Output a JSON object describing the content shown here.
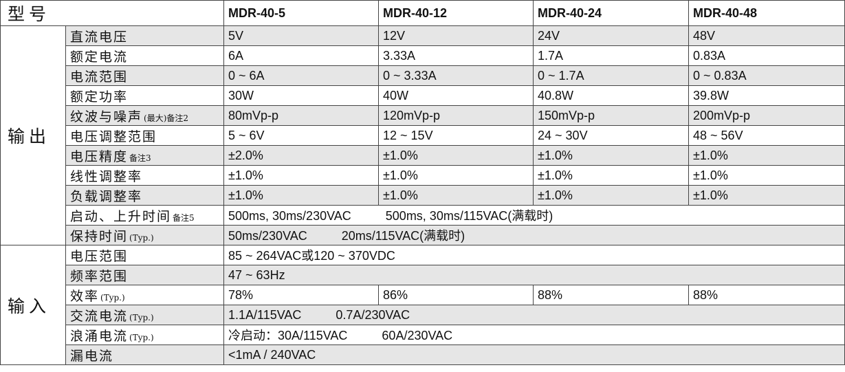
{
  "header": {
    "title": "型号",
    "models": [
      "MDR-40-5",
      "MDR-40-12",
      "MDR-40-24",
      "MDR-40-48"
    ]
  },
  "groups": [
    {
      "name": "输出",
      "rows": [
        {
          "label": "直流电压",
          "cells": [
            "5V",
            "12V",
            "24V",
            "48V"
          ]
        },
        {
          "label": "额定电流",
          "cells": [
            "6A",
            "3.33A",
            "1.7A",
            "0.83A"
          ]
        },
        {
          "label": "电流范围",
          "cells": [
            "0 ~ 6A",
            "0 ~ 3.33A",
            "0 ~ 1.7A",
            "0 ~ 0.83A"
          ]
        },
        {
          "label": "额定功率",
          "cells": [
            "30W",
            "40W",
            "40.8W",
            "39.8W"
          ]
        },
        {
          "label": "纹波与噪声",
          "note": "(最大)备注2",
          "cells": [
            "80mVp-p",
            "120mVp-p",
            "150mVp-p",
            "200mVp-p"
          ]
        },
        {
          "label": "电压调整范围",
          "cells": [
            "5 ~ 6V",
            "12 ~ 15V",
            "24 ~ 30V",
            "48 ~ 56V"
          ]
        },
        {
          "label": "电压精度",
          "note": "备注3",
          "cells": [
            "±2.0%",
            "±1.0%",
            "±1.0%",
            "±1.0%"
          ]
        },
        {
          "label": "线性调整率",
          "cells": [
            "±1.0%",
            "±1.0%",
            "±1.0%",
            "±1.0%"
          ]
        },
        {
          "label": "负载调整率",
          "cells": [
            "±1.0%",
            "±1.0%",
            "±1.0%",
            "±1.0%"
          ]
        },
        {
          "label": "启动、上升时间",
          "note": "备注5",
          "merged": [
            "500ms, 30ms/230VAC",
            "500ms, 30ms/115VAC(满载时)"
          ]
        },
        {
          "label": "保持时间",
          "note": "(Typ.)",
          "merged": [
            "50ms/230VAC",
            "20ms/115VAC(满载时)"
          ]
        }
      ]
    },
    {
      "name": "输入",
      "rows": [
        {
          "label": "电压范围",
          "merged": [
            "85 ~ 264VAC或120 ~ 370VDC"
          ]
        },
        {
          "label": "频率范围",
          "merged": [
            "47 ~ 63Hz"
          ]
        },
        {
          "label": "效率",
          "note": "(Typ.)",
          "cells": [
            "78%",
            "86%",
            "88%",
            "88%"
          ]
        },
        {
          "label": "交流电流",
          "note": "(Typ.)",
          "merged": [
            "1.1A/115VAC",
            "0.7A/230VAC"
          ]
        },
        {
          "label": "浪涌电流",
          "note": "(Typ.)",
          "merged": [
            "冷启动：30A/115VAC",
            "60A/230VAC"
          ]
        },
        {
          "label": "漏电流",
          "merged": [
            "<1mA / 240VAC"
          ]
        }
      ]
    }
  ]
}
